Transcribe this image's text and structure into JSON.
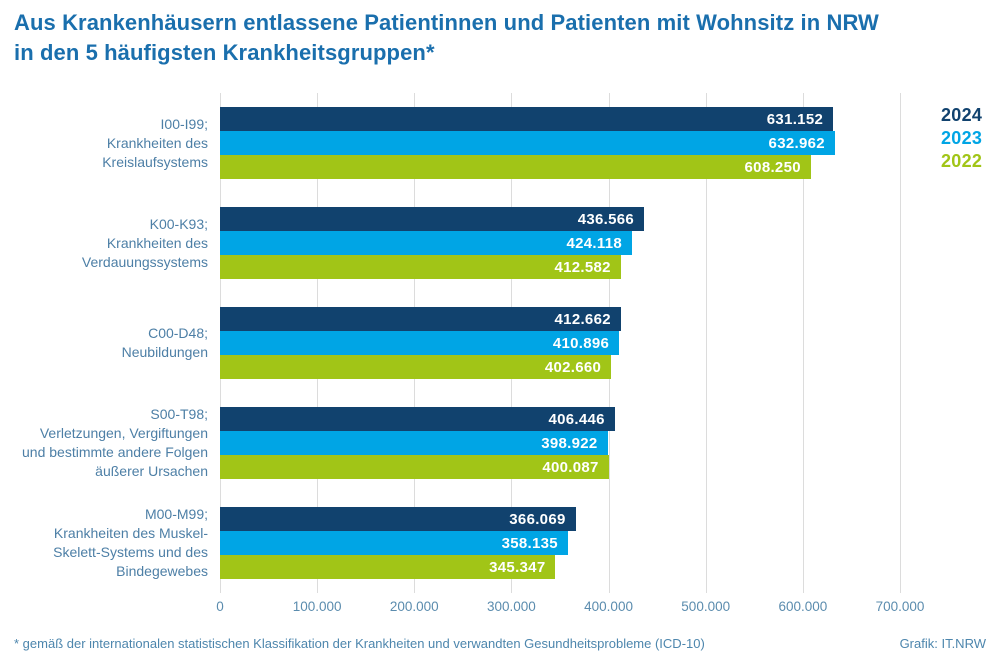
{
  "title": {
    "line1": "Aus Krankenhäusern entlassene Patientinnen und Patienten mit Wohnsitz in NRW",
    "line2": "in den 5 häufigsten Krankheitsgruppen*"
  },
  "footer": {
    "footnote": "* gemäß der internationalen statistischen Klassifikation der Krankheiten und verwandten Gesundheitsprobleme (ICD-10)",
    "credit": "Grafik: IT.NRW"
  },
  "colors": {
    "title_text": "#1a6fad",
    "category_text": "#4d7fa6",
    "tick_text": "#5b8cae",
    "footnote_text": "#4d86ad",
    "gridline": "#dcdcdc",
    "value_label_text": "#ffffff",
    "series_2024": "#11426e",
    "series_2023": "#00a5e5",
    "series_2022": "#a1c517"
  },
  "chart_data": {
    "type": "bar",
    "orientation": "horizontal",
    "grid": true,
    "legend_position": "top-right",
    "xlim": [
      0,
      700000
    ],
    "categories": [
      {
        "lines": [
          "I00-I99;",
          "Krankheiten des",
          "Kreislaufsystems"
        ]
      },
      {
        "lines": [
          "K00-K93;",
          "Krankheiten des",
          "Verdauungssystems"
        ]
      },
      {
        "lines": [
          "C00-D48;",
          "Neubildungen"
        ]
      },
      {
        "lines": [
          "S00-T98;",
          "Verletzungen, Vergiftungen",
          "und bestimmte andere Folgen",
          "äußerer Ursachen"
        ]
      },
      {
        "lines": [
          "M00-M99;",
          "Krankheiten des Muskel-",
          "Skelett-Systems und des",
          "Bindegewebes"
        ]
      }
    ],
    "series": [
      {
        "name": "2024",
        "color": "#11426e",
        "values": [
          631152,
          436566,
          412662,
          406446,
          366069
        ],
        "labels": [
          "631.152",
          "436.566",
          "412.662",
          "406.446",
          "366.069"
        ]
      },
      {
        "name": "2023",
        "color": "#00a5e5",
        "values": [
          632962,
          424118,
          410896,
          398922,
          358135
        ],
        "labels": [
          "632.962",
          "424.118",
          "410.896",
          "398.922",
          "358.135"
        ]
      },
      {
        "name": "2022",
        "color": "#a1c517",
        "values": [
          608250,
          412582,
          402660,
          400087,
          345347
        ],
        "labels": [
          "608.250",
          "412.582",
          "402.660",
          "400.087",
          "345.347"
        ]
      }
    ],
    "x_ticks": [
      {
        "value": 0,
        "label": "0"
      },
      {
        "value": 100000,
        "label": "100.000"
      },
      {
        "value": 200000,
        "label": "200.000"
      },
      {
        "value": 300000,
        "label": "300.000"
      },
      {
        "value": 400000,
        "label": "400.000"
      },
      {
        "value": 500000,
        "label": "500.000"
      },
      {
        "value": 600000,
        "label": "600.000"
      },
      {
        "value": 700000,
        "label": "700.000"
      }
    ]
  }
}
